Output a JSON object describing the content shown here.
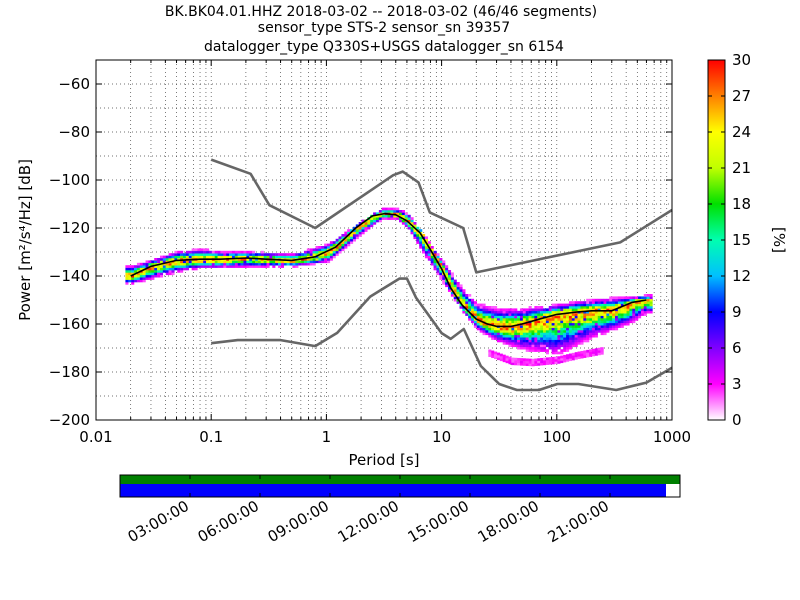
{
  "title_lines": [
    "BK.BK04.01.HHZ   2018-03-02 -- 2018-03-02  (46/46 segments)",
    "sensor_type STS-2 sensor_sn 39357",
    "datalogger_type Q330S+USGS datalogger_sn 6154"
  ],
  "chart_data": [
    {
      "type": "heatmap",
      "xlabel": "Period [s]",
      "ylabel": "Power [m²/s⁴/Hz] [dB]",
      "xscale": "log",
      "xlim": [
        0.01,
        1000
      ],
      "ylim": [
        -200,
        -50
      ],
      "xticks": [
        0.01,
        0.1,
        1,
        10,
        100,
        1000
      ],
      "xtick_labels": [
        "0.01",
        "0.1",
        "1",
        "10",
        "100",
        "1000"
      ],
      "yticks": [
        -200,
        -180,
        -160,
        -140,
        -120,
        -100,
        -80,
        -60
      ],
      "ytick_labels": [
        "−200",
        "−180",
        "−160",
        "−140",
        "−120",
        "−100",
        "−80",
        "−60"
      ],
      "grid": true,
      "colorbar": {
        "label": "[%]",
        "range": [
          0,
          30
        ],
        "ticks": [
          0,
          3,
          6,
          9,
          12,
          15,
          18,
          21,
          24,
          27,
          30
        ],
        "tick_labels": [
          "0",
          "3",
          "6",
          "9",
          "12",
          "15",
          "18",
          "21",
          "24",
          "27",
          "30"
        ],
        "colors": [
          "#ffffff",
          "#ff00ff",
          "#8000ff",
          "#0000ff",
          "#00c0ff",
          "#00ffb0",
          "#00e000",
          "#c0ff00",
          "#ffff00",
          "#ff8000",
          "#ff0000"
        ]
      },
      "noise_model_high": {
        "x": [
          0.1,
          0.22,
          0.32,
          0.8,
          3.8,
          4.6,
          6.3,
          7.9,
          15.4,
          20,
          354.8,
          1000
        ],
        "y": [
          -91.5,
          -97.4,
          -110.5,
          -120,
          -98,
          -96.5,
          -101,
          -113.5,
          -120,
          -138.5,
          -126,
          -112.5
        ]
      },
      "noise_model_low": {
        "x": [
          0.1,
          0.17,
          0.4,
          0.8,
          1.24,
          2.4,
          4.3,
          5,
          6,
          10,
          12,
          15.6,
          21.9,
          31.6,
          45,
          70,
          101,
          154,
          328,
          600,
          1000
        ],
        "y": [
          -168,
          -166.7,
          -166.7,
          -169.2,
          -163.7,
          -148.6,
          -141.1,
          -141.1,
          -149,
          -163.8,
          -166.2,
          -162.1,
          -177.5,
          -185,
          -187.5,
          -187.5,
          -185,
          -185,
          -187.5,
          -184.4,
          -178.2
        ]
      },
      "mean_curve": {
        "x": [
          0.02,
          0.03,
          0.05,
          0.08,
          0.12,
          0.2,
          0.3,
          0.5,
          0.8,
          1.2,
          1.8,
          2.5,
          3.2,
          4,
          5,
          6.5,
          8,
          10,
          12,
          15,
          20,
          25,
          30,
          40,
          50,
          70,
          100,
          150,
          200,
          300,
          450,
          600
        ],
        "y": [
          -140,
          -136,
          -133.5,
          -133,
          -133,
          -132.5,
          -133,
          -133.5,
          -132,
          -128,
          -120,
          -115,
          -114,
          -114.5,
          -117,
          -122,
          -129,
          -137,
          -145,
          -152,
          -158,
          -160,
          -161,
          -161,
          -160,
          -158,
          -156,
          -155,
          -154.5,
          -154.5,
          -151,
          -150
        ]
      },
      "high_curve": {
        "x": [
          0.02,
          0.05,
          0.08,
          0.12,
          0.2,
          0.5,
          1,
          2,
          3,
          4,
          5,
          7,
          10,
          15,
          20,
          30,
          50,
          100,
          200,
          400,
          600
        ],
        "y": [
          -136,
          -130,
          -129,
          -130,
          -130,
          -131,
          -127,
          -117,
          -112,
          -112,
          -114,
          -124,
          -134,
          -146,
          -152,
          -154,
          -154,
          -152,
          -150,
          -149,
          -148
        ]
      },
      "low_curve": {
        "x": [
          0.02,
          0.05,
          0.08,
          0.12,
          0.2,
          0.5,
          1,
          2,
          3,
          4,
          5,
          7,
          10,
          15,
          20,
          30,
          50,
          100,
          200,
          400,
          600
        ],
        "y": [
          -143,
          -138,
          -136.5,
          -136.5,
          -136,
          -136,
          -134,
          -122,
          -116,
          -116,
          -120,
          -131,
          -142,
          -155,
          -162,
          -167,
          -170,
          -172,
          -165,
          -160,
          -155
        ]
      },
      "outlier_band": {
        "x": [
          25,
          40,
          60,
          100,
          150,
          250
        ],
        "y": [
          -172,
          -175.5,
          -176,
          -175,
          -173,
          -171
        ]
      }
    },
    {
      "type": "table",
      "name": "data-availability",
      "time_ticks": [
        "03:00:00",
        "06:00:00",
        "09:00:00",
        "12:00:00",
        "15:00:00",
        "18:00:00",
        "21:00:00"
      ],
      "green_coverage": 1.0,
      "blue_coverage": 0.975
    }
  ]
}
